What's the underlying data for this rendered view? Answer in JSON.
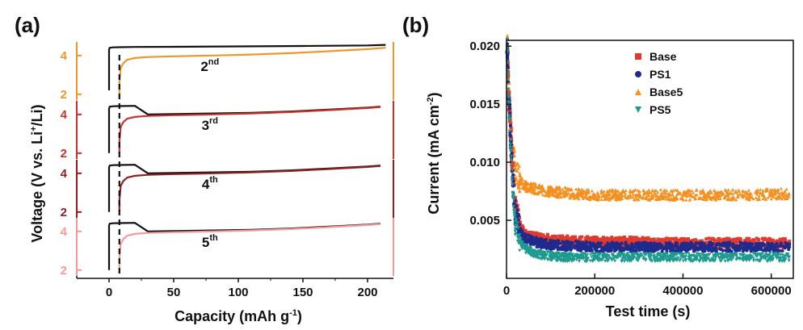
{
  "panels": {
    "a_label": "(a)",
    "b_label": "(b)"
  },
  "chart_data": [
    {
      "type": "line",
      "panel": "(a)",
      "xlabel": "Capacity (mAh g",
      "xlabel_sup": "-1",
      "xlabel_end": ")",
      "ylabel": "Voltage (V vs. Li",
      "ylabel_sup": "+",
      "ylabel_end": "/Li)",
      "xlim": [
        -25,
        220
      ],
      "x_ticks": [
        "0",
        "50",
        "100",
        "150",
        "200"
      ],
      "x_tick_values": [
        0,
        50,
        100,
        150,
        200
      ],
      "stacked_offset_voltage": true,
      "cycles": [
        {
          "label_main": "2",
          "label_sup": "nd",
          "color": "#f0962a",
          "ticks": [
            "4",
            "2"
          ],
          "tick_values": [
            4,
            2
          ],
          "orange_charge": {
            "x": [
              8,
              8,
              9,
              11,
              14,
              20,
              30,
              50,
              80,
              110,
              140,
              170,
              200,
              214
            ],
            "y": [
              2.0,
              2.6,
              3.35,
              3.6,
              3.78,
              3.87,
              3.92,
              3.96,
              4.0,
              4.05,
              4.12,
              4.22,
              4.33,
              4.4
            ]
          },
          "black_charge": {
            "x": [
              0,
              0,
              0.5,
              3,
              8,
              20,
              50,
              100,
              150,
              200,
              214
            ],
            "y": [
              2.2,
              4.3,
              4.4,
              4.42,
              4.43,
              4.44,
              4.45,
              4.47,
              4.49,
              4.52,
              4.55
            ]
          }
        },
        {
          "label_main": "3",
          "label_sup": "rd",
          "color": "#c9302c",
          "ticks": [
            "4",
            "2"
          ],
          "tick_values": [
            4,
            2
          ],
          "orange_charge": {
            "x": [
              8,
              8,
              9,
              11,
              14,
              20,
              30,
              50,
              80,
              110,
              140,
              170,
              200,
              210
            ],
            "y": [
              2.0,
              2.6,
              3.35,
              3.6,
              3.78,
              3.87,
              3.92,
              3.96,
              4.0,
              4.05,
              4.12,
              4.22,
              4.33,
              4.38
            ]
          },
          "black_charge": {
            "x": [
              0,
              0,
              0.5,
              3,
              8,
              20,
              30,
              50,
              80,
              110,
              140,
              170,
              200,
              210
            ],
            "y": [
              2.0,
              4.3,
              4.4,
              4.42,
              4.43,
              4.44,
              4.0,
              4.02,
              4.05,
              4.08,
              4.15,
              4.25,
              4.35,
              4.4
            ]
          }
        },
        {
          "label_main": "4",
          "label_sup": "th",
          "color": "#8e1f1f",
          "ticks": [
            "4",
            "2"
          ],
          "tick_values": [
            4,
            2
          ],
          "orange_charge": {
            "x": [
              8,
              8,
              9,
              11,
              14,
              20,
              30,
              50,
              80,
              110,
              140,
              170,
              200,
              210
            ],
            "y": [
              2.0,
              2.6,
              3.35,
              3.6,
              3.78,
              3.87,
              3.92,
              3.96,
              4.0,
              4.05,
              4.12,
              4.22,
              4.33,
              4.38
            ]
          },
          "black_charge": {
            "x": [
              0,
              0,
              0.5,
              3,
              8,
              20,
              30,
              50,
              80,
              110,
              140,
              170,
              200,
              210
            ],
            "y": [
              2.0,
              4.3,
              4.4,
              4.42,
              4.43,
              4.44,
              4.0,
              4.02,
              4.05,
              4.08,
              4.15,
              4.25,
              4.35,
              4.4
            ]
          }
        },
        {
          "label_main": "5",
          "label_sup": "th",
          "color": "#f29a9a",
          "ticks": [
            "4",
            "2"
          ],
          "tick_values": [
            4,
            2
          ],
          "orange_charge": {
            "x": [
              8,
              8,
              9,
              11,
              14,
              20,
              30,
              50,
              80,
              110,
              140,
              170,
              200,
              210
            ],
            "y": [
              2.0,
              2.6,
              3.35,
              3.6,
              3.78,
              3.87,
              3.92,
              3.96,
              4.0,
              4.05,
              4.12,
              4.22,
              4.33,
              4.38
            ]
          },
          "black_charge": {
            "x": [
              0,
              0,
              0.5,
              3,
              8,
              20,
              30,
              50,
              80,
              110,
              140,
              170,
              200,
              210
            ],
            "y": [
              2.0,
              4.3,
              4.4,
              4.42,
              4.43,
              4.44,
              4.0,
              4.02,
              4.05,
              4.08,
              4.15,
              4.25,
              4.35,
              4.4
            ]
          }
        }
      ],
      "dashed_line_x": 8
    },
    {
      "type": "scatter",
      "panel": "(b)",
      "xlabel": "Test time (s)",
      "ylabel": "Current (mA cm",
      "ylabel_sup": "-2",
      "ylabel_end": ")",
      "xlim": [
        0,
        650000
      ],
      "ylim": [
        0.0,
        0.02
      ],
      "x_ticks": [
        "0",
        "200000",
        "400000",
        "600000"
      ],
      "x_tick_values": [
        0,
        200000,
        400000,
        600000
      ],
      "y_ticks": [
        "0.020",
        "0.015",
        "0.010",
        "0.005"
      ],
      "y_tick_values": [
        0.02,
        0.015,
        0.01,
        0.005
      ],
      "legend_position": "top-right",
      "series": [
        {
          "name": "Base",
          "color": "#e03a2f",
          "marker": "square",
          "x": [
            2000,
            5000,
            10000,
            15000,
            20000,
            30000,
            40000,
            60000,
            80000,
            100000,
            130000,
            160000,
            200000,
            250000,
            300000,
            350000,
            400000,
            450000,
            500000,
            550000,
            600000,
            640000
          ],
          "y": [
            0.0195,
            0.016,
            0.012,
            0.0085,
            0.006,
            0.0045,
            0.0038,
            0.0035,
            0.0034,
            0.0033,
            0.0032,
            0.0032,
            0.0031,
            0.0031,
            0.0031,
            0.003,
            0.003,
            0.003,
            0.003,
            0.003,
            0.003,
            0.003
          ]
        },
        {
          "name": "PS1",
          "color": "#1f2a8c",
          "marker": "circle",
          "x": [
            2000,
            5000,
            10000,
            15000,
            20000,
            30000,
            40000,
            60000,
            80000,
            100000,
            130000,
            160000,
            200000,
            250000,
            300000,
            350000,
            400000,
            450000,
            500000,
            550000,
            600000,
            640000
          ],
          "y": [
            0.0195,
            0.0155,
            0.0115,
            0.008,
            0.0055,
            0.0042,
            0.0035,
            0.0032,
            0.003,
            0.0029,
            0.0028,
            0.0028,
            0.0027,
            0.0027,
            0.0027,
            0.0027,
            0.0027,
            0.0027,
            0.0027,
            0.0027,
            0.0027,
            0.0027
          ]
        },
        {
          "name": "Base5",
          "color": "#f5901e",
          "marker": "triangle-up",
          "x": [
            2000,
            5000,
            10000,
            15000,
            20000,
            30000,
            40000,
            60000,
            80000,
            100000,
            130000,
            160000,
            200000,
            250000,
            300000,
            350000,
            400000,
            450000,
            500000,
            550000,
            600000,
            640000
          ],
          "y": [
            0.0198,
            0.017,
            0.0135,
            0.011,
            0.0095,
            0.0085,
            0.008,
            0.0078,
            0.0076,
            0.0075,
            0.0074,
            0.0073,
            0.0072,
            0.0072,
            0.0072,
            0.0072,
            0.0072,
            0.0072,
            0.0072,
            0.0072,
            0.0073,
            0.0073
          ]
        },
        {
          "name": "PS5",
          "color": "#1c9a8e",
          "marker": "triangle-down",
          "x": [
            2000,
            5000,
            10000,
            15000,
            20000,
            30000,
            40000,
            60000,
            80000,
            100000,
            130000,
            160000,
            200000,
            250000,
            300000,
            350000,
            400000,
            450000,
            500000,
            550000,
            600000,
            640000
          ],
          "y": [
            0.0195,
            0.015,
            0.011,
            0.007,
            0.0045,
            0.0032,
            0.0026,
            0.0022,
            0.002,
            0.0019,
            0.0018,
            0.0018,
            0.0018,
            0.0018,
            0.0018,
            0.0018,
            0.0018,
            0.0018,
            0.0018,
            0.0018,
            0.0018,
            0.0018
          ]
        }
      ]
    }
  ]
}
